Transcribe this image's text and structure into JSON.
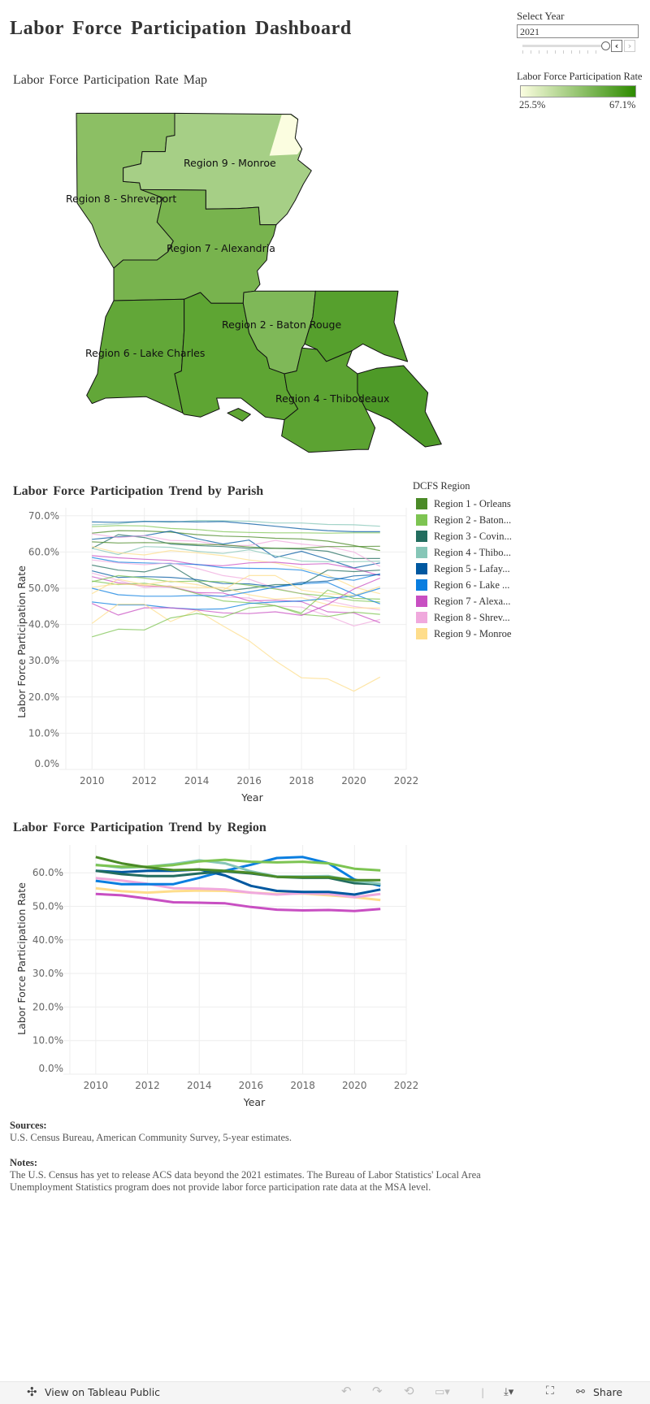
{
  "header": {
    "title": "Labor Force Participation Dashboard"
  },
  "filter": {
    "label": "Select Year",
    "value": "2021",
    "prev_icon": "chevron-left-icon",
    "next_icon": "chevron-right-icon"
  },
  "color_legend": {
    "title": "Labor Force Participation Rate",
    "min": "25.5%",
    "max": "67.1%",
    "color_low": "#fbfde0",
    "color_high": "#2e8b00"
  },
  "map": {
    "title": "Labor Force Participation Rate Map",
    "regions": [
      {
        "label": "Region 8 - Shreveport",
        "fill": "#8cbf64"
      },
      {
        "label": "Region 9 - Monroe",
        "fill": "#a6cf86"
      },
      {
        "label": "Region 7 - Alexandria",
        "fill": "#78b34e"
      },
      {
        "label": "Region 6 - Lake Charles",
        "fill": "#62a738"
      },
      {
        "label": "",
        "fill": "#5ea533"
      },
      {
        "label": "Region 2 - Baton Rouge",
        "fill": "#7fb858"
      },
      {
        "label": "",
        "fill": "#56a02d"
      },
      {
        "label": "Region 4 - Thibodeaux",
        "fill": "#5ca332"
      },
      {
        "label": "",
        "fill": "#4e9a28"
      }
    ]
  },
  "legend": {
    "title": "DCFS Region",
    "items": [
      {
        "label": "Region 1 - Orleans",
        "color": "#4b8a27"
      },
      {
        "label": "Region 2 - Baton...",
        "color": "#7dc452"
      },
      {
        "label": "Region 3 - Covin...",
        "color": "#236d5f"
      },
      {
        "label": "Region 4 - Thibo...",
        "color": "#86c6b7"
      },
      {
        "label": "Region 5 - Lafay...",
        "color": "#0058a0"
      },
      {
        "label": "Region 6 - Lake ...",
        "color": "#0a7ee0"
      },
      {
        "label": "Region 7 - Alexa...",
        "color": "#c84fc2"
      },
      {
        "label": "Region 8 - Shrev...",
        "color": "#f0a9dd"
      },
      {
        "label": "Region 9 - Monroe",
        "color": "#fedd8b"
      }
    ]
  },
  "chart_data": [
    {
      "type": "line",
      "title": "Labor Force Participation Trend by Parish",
      "xlabel": "Year",
      "ylabel": "Labor Force Participation Rate",
      "xlim": [
        2009,
        2022
      ],
      "ylim": [
        0,
        70
      ],
      "xticks": [
        "2010",
        "2012",
        "2014",
        "2016",
        "2018",
        "2020",
        "2022"
      ],
      "yticks": [
        "0.0%",
        "10.0%",
        "20.0%",
        "30.0%",
        "40.0%",
        "50.0%",
        "60.0%",
        "70.0%"
      ],
      "grid": true,
      "legend": "right",
      "x": [
        2010,
        2011,
        2012,
        2013,
        2014,
        2015,
        2016,
        2017,
        2018,
        2019,
        2020,
        2021
      ],
      "series": [
        {
          "region": 4,
          "values": [
            67.5,
            67.8,
            68.5,
            68.2,
            68.7,
            68.6,
            68.5,
            68,
            68,
            67.6,
            67.5,
            67.1
          ]
        },
        {
          "region": 5,
          "values": [
            68.3,
            68.2,
            68.4,
            68.4,
            68.3,
            68.4,
            67.8,
            67.1,
            66.4,
            65.9,
            65.6,
            65.6
          ]
        },
        {
          "region": 2,
          "values": [
            67,
            67.3,
            67.2,
            66.5,
            66.2,
            65.6,
            65.4,
            65.3,
            65.3,
            65.2,
            65.3,
            65.3
          ]
        },
        {
          "region": 1,
          "values": [
            65.2,
            65.9,
            65.8,
            65.5,
            64.8,
            64.4,
            64.2,
            63.8,
            63.6,
            63,
            61.8,
            60.4
          ]
        },
        {
          "region": 3,
          "values": [
            61,
            64.8,
            64,
            62.2,
            61.8,
            61.5,
            61,
            61,
            60.8,
            60.2,
            58.2,
            58.2
          ]
        },
        {
          "region": 5,
          "values": [
            63.5,
            64.2,
            64.5,
            65.8,
            63.7,
            62.2,
            63.3,
            58.5,
            60.2,
            58,
            55.6,
            57
          ]
        },
        {
          "region": 8,
          "values": [
            65,
            64,
            64.5,
            63.2,
            63,
            61.8,
            61.8,
            63.2,
            62.2,
            61.5,
            60,
            56
          ]
        },
        {
          "region": 1,
          "values": [
            62.8,
            62.5,
            62.6,
            62.5,
            62.1,
            62,
            61.4,
            61,
            61,
            61.5,
            61.5,
            61.6
          ]
        },
        {
          "region": 4,
          "values": [
            61,
            59.3,
            61.5,
            61.3,
            60.2,
            59.6,
            60.6,
            59,
            57.5,
            57.3,
            57.3,
            57.5
          ]
        },
        {
          "region": 9,
          "values": [
            61.5,
            59.8,
            59.2,
            60.4,
            59.8,
            59,
            57.8,
            57,
            55.5,
            53.6,
            50.3,
            48.5
          ]
        },
        {
          "region": 7,
          "values": [
            59,
            58.4,
            58,
            57.7,
            56.5,
            56.2,
            57,
            57.2,
            56.6,
            56.8,
            55.5,
            53.5
          ]
        },
        {
          "region": 6,
          "values": [
            58.5,
            57.2,
            57,
            56.8,
            56.6,
            55.7,
            55.5,
            55.4,
            55,
            53,
            52.2,
            54
          ]
        },
        {
          "region": 8,
          "values": [
            57.8,
            57,
            56.5,
            57,
            55.5,
            53.5,
            52.5,
            50,
            48.5,
            46.5,
            45,
            44
          ]
        },
        {
          "region": 3,
          "values": [
            56.4,
            55,
            54.5,
            56.4,
            52,
            49.2,
            50,
            51,
            51,
            55,
            54.6,
            55
          ]
        },
        {
          "region": 5,
          "values": [
            54.8,
            53,
            53.2,
            53,
            52.4,
            51.3,
            51.2,
            50.4,
            51.6,
            52,
            53.4,
            53.8
          ]
        },
        {
          "region": 8,
          "values": [
            54.2,
            52.2,
            50.2,
            50.7,
            48.7,
            47.6,
            47.3,
            45.1,
            44.8,
            42.4,
            39.6,
            41.4
          ]
        },
        {
          "region": 7,
          "values": [
            53.2,
            51.5,
            50.7,
            50.3,
            48.8,
            48.7,
            46.5,
            46.7,
            46.3,
            43.5,
            43.2,
            40.5
          ]
        },
        {
          "region": 2,
          "values": [
            52,
            51,
            51.4,
            50.4,
            48.5,
            46.5,
            46,
            45.2,
            42.8,
            42.2,
            43.4,
            42.8
          ]
        },
        {
          "region": 2,
          "values": [
            51.8,
            53.5,
            52.8,
            51.8,
            52,
            51.8,
            50.8,
            49.8,
            48.5,
            47.8,
            46.6,
            46.2
          ]
        },
        {
          "region": 9,
          "values": [
            50.3,
            51.2,
            50.8,
            50.5,
            50.2,
            50.2,
            48.2,
            47,
            47.4,
            45.5,
            44.6,
            44.5
          ]
        },
        {
          "region": 6,
          "values": [
            50,
            48.2,
            47.8,
            47.8,
            48,
            47.8,
            49,
            50.3,
            51.2,
            51.6,
            48.4,
            45.7
          ]
        },
        {
          "region": 9,
          "values": [
            48.5,
            52.5,
            51,
            52,
            51,
            49.5,
            53.5,
            53.5,
            49.5,
            48.5,
            48,
            50.5
          ]
        },
        {
          "region": 6,
          "values": [
            46.2,
            45.4,
            45.4,
            44.6,
            44.2,
            44.3,
            45.8,
            46.2,
            46.5,
            47.2,
            47.8,
            50
          ]
        },
        {
          "region": 7,
          "values": [
            45.8,
            42.6,
            44.6,
            44.6,
            44,
            43.2,
            43,
            43.5,
            42.5,
            45.5,
            49.8,
            52.8
          ]
        },
        {
          "region": 9,
          "values": [
            40.3,
            45.6,
            45.6,
            40.8,
            43.9,
            39.6,
            35.5,
            30,
            25.3,
            25,
            21.6,
            25.5
          ]
        },
        {
          "region": 2,
          "values": [
            36.6,
            38.7,
            38.5,
            41.8,
            43,
            42,
            44.6,
            45.2,
            43.2,
            49.5,
            47.2,
            47
          ]
        }
      ]
    },
    {
      "type": "line",
      "title": "Labor Force Participation Trend by Region",
      "xlabel": "Year",
      "ylabel": "Labor Force Participation Rate",
      "xlim": [
        2009,
        2022
      ],
      "ylim": [
        0,
        68
      ],
      "xticks": [
        "2010",
        "2012",
        "2014",
        "2016",
        "2018",
        "2020",
        "2022"
      ],
      "yticks": [
        "0.0%",
        "10.0%",
        "20.0%",
        "30.0%",
        "40.0%",
        "50.0%",
        "60.0%"
      ],
      "grid": true,
      "x": [
        2010,
        2011,
        2012,
        2013,
        2014,
        2015,
        2016,
        2017,
        2018,
        2019,
        2020,
        2021
      ],
      "series": [
        {
          "region": 9,
          "values": [
            55.4,
            54.5,
            54.1,
            54.5,
            54.7,
            54.6,
            54.1,
            53.7,
            53.8,
            53.3,
            52.7,
            51.9
          ]
        },
        {
          "region": 8,
          "values": [
            58.4,
            57.7,
            56.7,
            55.4,
            55.3,
            55,
            54.1,
            53.5,
            53.9,
            53.7,
            52.7,
            53.7
          ]
        },
        {
          "region": 7,
          "values": [
            53.7,
            53.3,
            52.3,
            51.2,
            51.1,
            50.9,
            49.8,
            49,
            48.8,
            48.9,
            48.6,
            49.2
          ]
        },
        {
          "region": 6,
          "values": [
            57.6,
            56.6,
            56.6,
            56.6,
            58.5,
            60.6,
            62.4,
            64.4,
            64.7,
            62.8,
            58,
            56.1
          ]
        },
        {
          "region": 5,
          "values": [
            60.6,
            60.2,
            60.6,
            60.6,
            61,
            59.2,
            56.1,
            54.6,
            54.3,
            54.3,
            53.5,
            55
          ]
        },
        {
          "region": 3,
          "values": [
            60.6,
            59.6,
            59,
            59,
            59.8,
            60.4,
            59.8,
            58.8,
            58.5,
            58.5,
            56.9,
            56.6
          ]
        },
        {
          "region": 4,
          "values": [
            62.4,
            61.5,
            61.8,
            62.6,
            63.7,
            62.8,
            60.4,
            58.9,
            58.9,
            59,
            57.6,
            56.7
          ]
        },
        {
          "region": 2,
          "values": [
            62.3,
            61.8,
            61.8,
            62.3,
            63.4,
            63.9,
            63.3,
            63.1,
            63.3,
            62.8,
            61.2,
            60.7
          ]
        },
        {
          "region": 1,
          "values": [
            64.7,
            62.8,
            61.6,
            60.8,
            61,
            60.6,
            60,
            58.8,
            58.7,
            58.7,
            57.8,
            57.8
          ]
        }
      ]
    }
  ],
  "footer": {
    "sources_label": "Sources:",
    "sources_text": "U.S. Census Bureau, American Community Survey, 5-year estimates.",
    "notes_label": "Notes:",
    "notes_text": "The U.S. Census has yet to release ACS data beyond the 2021 estimates. The Bureau of Labor Statistics' Local Area Unemployment Statistics program does not provide labor force participation rate data at the MSA level."
  },
  "toolbar": {
    "view_label": "View on Tableau Public",
    "share_label": "Share"
  }
}
